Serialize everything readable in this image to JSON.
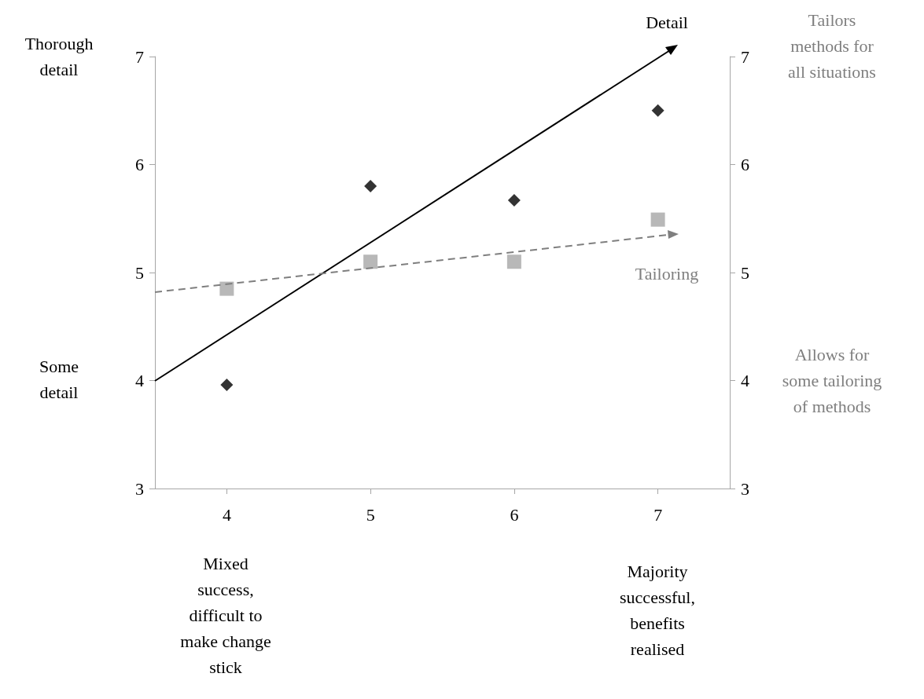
{
  "chart_data": {
    "type": "scatter",
    "xlim": [
      3.5,
      7.5
    ],
    "xticks": [
      4,
      5,
      6,
      7
    ],
    "ylim": [
      3,
      7
    ],
    "yticks": [
      3,
      4,
      5,
      6,
      7
    ],
    "y2lim": [
      3,
      7
    ],
    "y2ticks": [
      3,
      4,
      5,
      6,
      7
    ],
    "grid": false,
    "series": [
      {
        "marker": "diamond",
        "color": "#000000",
        "x": [
          4,
          5,
          6,
          7
        ],
        "values": [
          3.96,
          5.8,
          5.67,
          6.5
        ]
      },
      {
        "marker": "square",
        "color": "#a6a6a6",
        "x": [
          4,
          5,
          6,
          7
        ],
        "values": [
          4.85,
          5.1,
          5.1,
          5.49
        ]
      }
    ],
    "annotations": [
      "Thorough\ndetail",
      "Some\ndetail",
      "Tailors\nmethods for\nall situations",
      "Allows for\nsome tailoring\nof methods",
      "Mixed\nsuccess,\ndifficult to\nmake change\nstick",
      "Majority\nsuccessful,\nbenefits\nrealised",
      "Detail",
      "Tailoring"
    ]
  }
}
